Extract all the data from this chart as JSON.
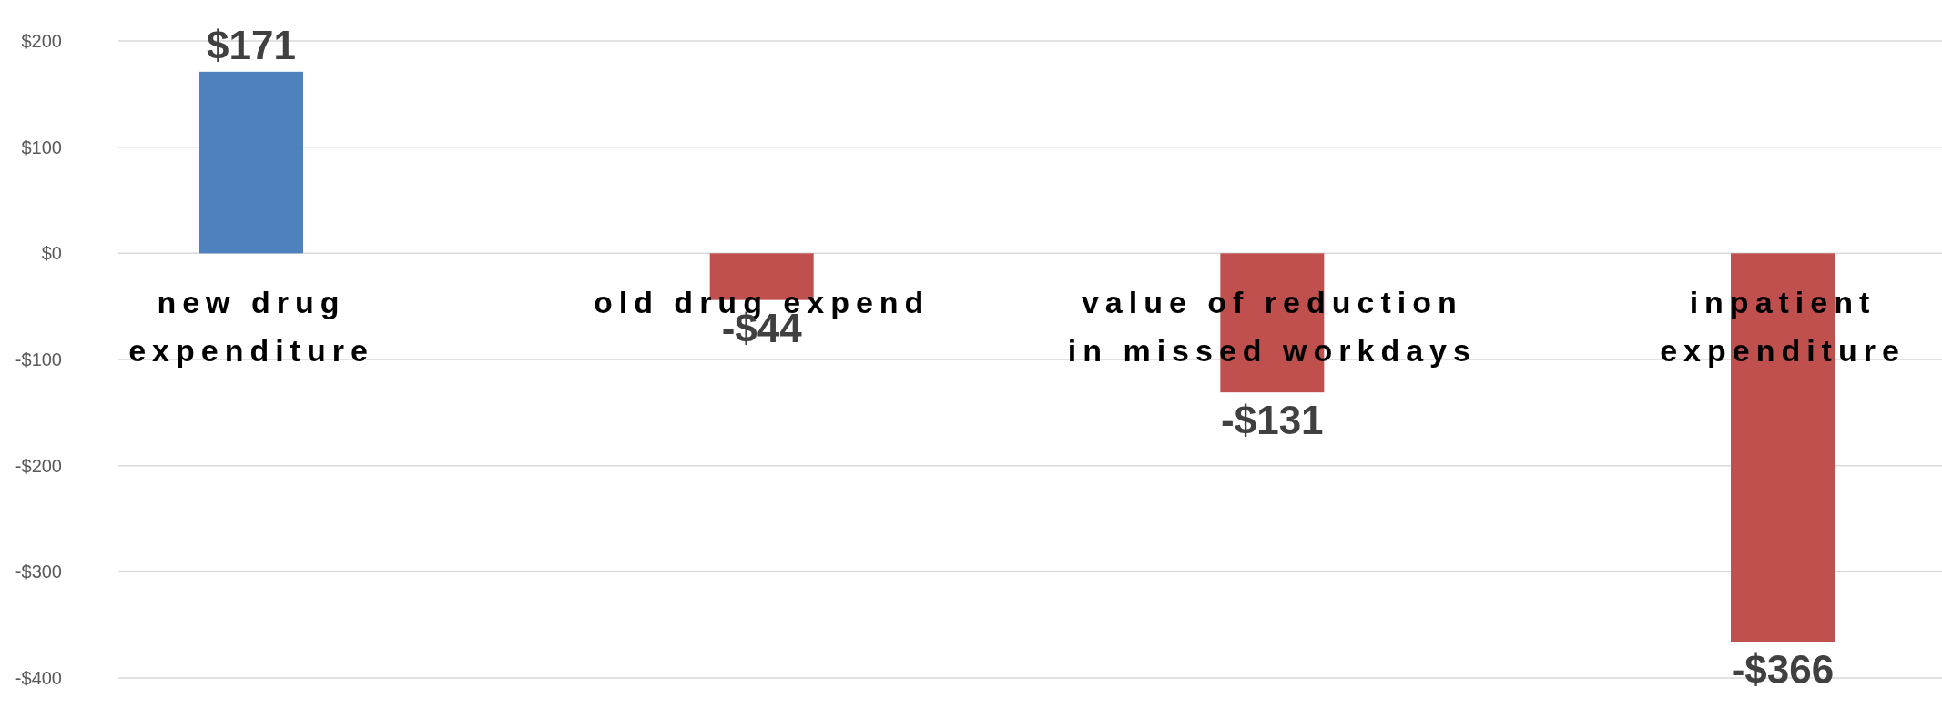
{
  "chart_data": {
    "type": "bar",
    "categories": [
      "new drug\nexpenditure",
      "old drug expend",
      "value of reduction\nin missed workdays",
      "inpatient\nexpenditure"
    ],
    "values": [
      171,
      -44,
      -131,
      -366
    ],
    "colors": [
      "#4f81bd",
      "#c0504d",
      "#c0504d",
      "#c0504d"
    ],
    "value_labels": [
      "$171",
      "-$44",
      "-$131",
      "-$366"
    ],
    "ylim": [
      -400,
      200
    ],
    "yticks": [
      {
        "value": -400,
        "label": "-$400"
      },
      {
        "value": -300,
        "label": "-$300"
      },
      {
        "value": -200,
        "label": "-$200"
      },
      {
        "value": -100,
        "label": "-$100"
      },
      {
        "value": 0,
        "label": "$0"
      },
      {
        "value": 100,
        "label": "$100"
      },
      {
        "value": 200,
        "label": "$200"
      }
    ],
    "grid": "y"
  }
}
